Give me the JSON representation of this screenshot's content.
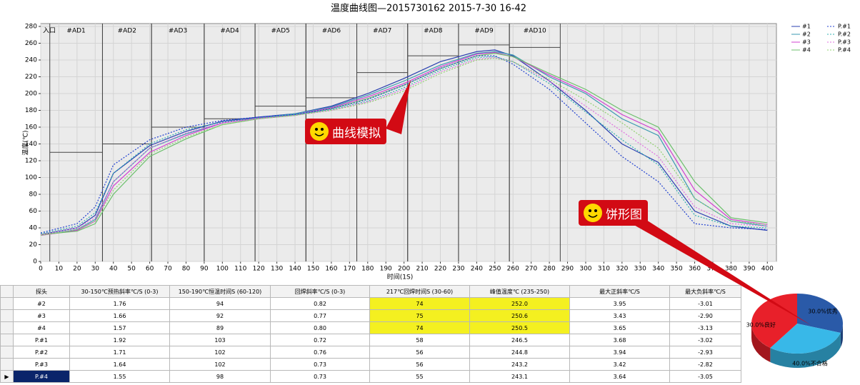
{
  "chart_data": [
    {
      "type": "line",
      "title": "温度曲线图—2015730162 2015-7-30 16-42",
      "x_label": "时间(1S)",
      "y_label": "温度(℃)",
      "xlim": [
        0,
        405
      ],
      "ylim": [
        0,
        280
      ],
      "xticks": [
        0,
        10,
        20,
        30,
        40,
        50,
        60,
        70,
        80,
        90,
        100,
        110,
        120,
        130,
        140,
        150,
        160,
        170,
        180,
        190,
        200,
        210,
        220,
        230,
        240,
        250,
        260,
        270,
        280,
        290,
        300,
        310,
        320,
        330,
        340,
        350,
        360,
        370,
        380,
        390,
        400
      ],
      "yticks": [
        0,
        20,
        40,
        60,
        80,
        100,
        120,
        140,
        160,
        180,
        200,
        220,
        240,
        260,
        280
      ],
      "grid": true,
      "entry_label": "入口",
      "zones": [
        {
          "label": "#AD1",
          "start": 5,
          "end": 34,
          "setpoint": 130
        },
        {
          "label": "#AD2",
          "start": 34,
          "end": 61,
          "setpoint": 140
        },
        {
          "label": "#AD3",
          "start": 61,
          "end": 90,
          "setpoint": 160
        },
        {
          "label": "#AD4",
          "start": 90,
          "end": 118,
          "setpoint": 170
        },
        {
          "label": "#AD5",
          "start": 118,
          "end": 146,
          "setpoint": 185
        },
        {
          "label": "#AD6",
          "start": 146,
          "end": 174,
          "setpoint": 195
        },
        {
          "label": "#AD7",
          "start": 174,
          "end": 202,
          "setpoint": 225
        },
        {
          "label": "#AD8",
          "start": 202,
          "end": 230,
          "setpoint": 245
        },
        {
          "label": "#AD9",
          "start": 230,
          "end": 258,
          "setpoint": 258
        },
        {
          "label": "#AD10",
          "start": 258,
          "end": 286,
          "setpoint": 255
        }
      ],
      "x": [
        0,
        20,
        30,
        40,
        60,
        80,
        100,
        120,
        140,
        160,
        180,
        200,
        220,
        240,
        250,
        260,
        280,
        300,
        320,
        340,
        360,
        380,
        400
      ],
      "series": [
        {
          "name": "#1",
          "color": "#2a3fb0",
          "style": "solid",
          "values": [
            32,
            40,
            55,
            105,
            138,
            155,
            167,
            172,
            176,
            185,
            200,
            218,
            238,
            250,
            252,
            245,
            215,
            180,
            140,
            118,
            60,
            42,
            37
          ]
        },
        {
          "name": "#2",
          "color": "#3a9ab0",
          "style": "solid",
          "values": [
            31,
            38,
            50,
            95,
            135,
            152,
            165,
            171,
            176,
            184,
            198,
            215,
            234,
            248,
            250,
            246,
            220,
            200,
            170,
            150,
            75,
            48,
            42
          ]
        },
        {
          "name": "#3",
          "color": "#d040d0",
          "style": "solid",
          "values": [
            31,
            37,
            48,
            90,
            130,
            150,
            165,
            171,
            175,
            183,
            196,
            212,
            232,
            247,
            249,
            244,
            222,
            202,
            175,
            155,
            85,
            50,
            44
          ]
        },
        {
          "name": "#4",
          "color": "#6cc06c",
          "style": "solid",
          "values": [
            32,
            36,
            45,
            80,
            125,
            146,
            163,
            170,
            174,
            182,
            194,
            210,
            230,
            245,
            248,
            244,
            224,
            205,
            180,
            160,
            95,
            52,
            46
          ]
        },
        {
          "name": "P.#1",
          "color": "#2040d0",
          "style": "dotted",
          "values": [
            34,
            45,
            65,
            115,
            145,
            160,
            168,
            172,
            175,
            182,
            193,
            210,
            230,
            245,
            245,
            235,
            205,
            165,
            125,
            95,
            45,
            40,
            38
          ]
        },
        {
          "name": "P.#2",
          "color": "#30b0b0",
          "style": "dotted",
          "values": [
            33,
            42,
            58,
            105,
            140,
            157,
            166,
            171,
            175,
            181,
            191,
            207,
            228,
            243,
            244,
            238,
            212,
            178,
            145,
            115,
            55,
            42,
            40
          ]
        },
        {
          "name": "P.#3",
          "color": "#e070e0",
          "style": "dotted",
          "values": [
            32,
            40,
            52,
            95,
            135,
            153,
            165,
            170,
            174,
            180,
            190,
            205,
            226,
            241,
            243,
            238,
            215,
            185,
            155,
            125,
            65,
            45,
            42
          ]
        },
        {
          "name": "P.#4",
          "color": "#90d070",
          "style": "dotted",
          "values": [
            31,
            38,
            48,
            85,
            128,
            148,
            163,
            170,
            174,
            180,
            189,
            203,
            224,
            240,
            242,
            238,
            217,
            192,
            165,
            135,
            75,
            48,
            44
          ]
        }
      ]
    },
    {
      "type": "pie",
      "values": [
        30,
        30,
        40
      ],
      "value_labels": [
        "30.0%优秀",
        "30.0%良好",
        "40.0%不合格"
      ],
      "colors": [
        "#2a5aa8",
        "#38b8e8",
        "#e8202a"
      ]
    }
  ],
  "annotations": [
    "曲线模拟",
    "饼形图"
  ],
  "table": {
    "header": [
      "探头",
      "30-150℃预热斜率℃/S (0-3)",
      "150-190℃恒温时间S (60-120)",
      "回焊斜率℃/S (0-3)",
      "217℃回焊时间S (30-60)",
      "峰值温度℃ (235-250)",
      "最大正斜率℃/S",
      "最大负斜率℃/S"
    ],
    "rows": [
      [
        "#2",
        "1.76",
        "94",
        "0.82",
        "74",
        "252.0",
        "3.95",
        "-3.01"
      ],
      [
        "#3",
        "1.66",
        "92",
        "0.77",
        "75",
        "250.6",
        "3.43",
        "-2.90"
      ],
      [
        "#4",
        "1.57",
        "89",
        "0.80",
        "74",
        "250.5",
        "3.65",
        "-3.13"
      ],
      [
        "P.#1",
        "1.92",
        "103",
        "0.72",
        "58",
        "246.5",
        "3.68",
        "-3.02"
      ],
      [
        "P.#2",
        "1.71",
        "102",
        "0.76",
        "56",
        "244.8",
        "3.94",
        "-2.93"
      ],
      [
        "P.#3",
        "1.64",
        "102",
        "0.73",
        "56",
        "243.2",
        "3.42",
        "-2.82"
      ],
      [
        "P.#4",
        "1.55",
        "98",
        "0.73",
        "55",
        "243.1",
        "3.64",
        "-3.05"
      ]
    ]
  }
}
